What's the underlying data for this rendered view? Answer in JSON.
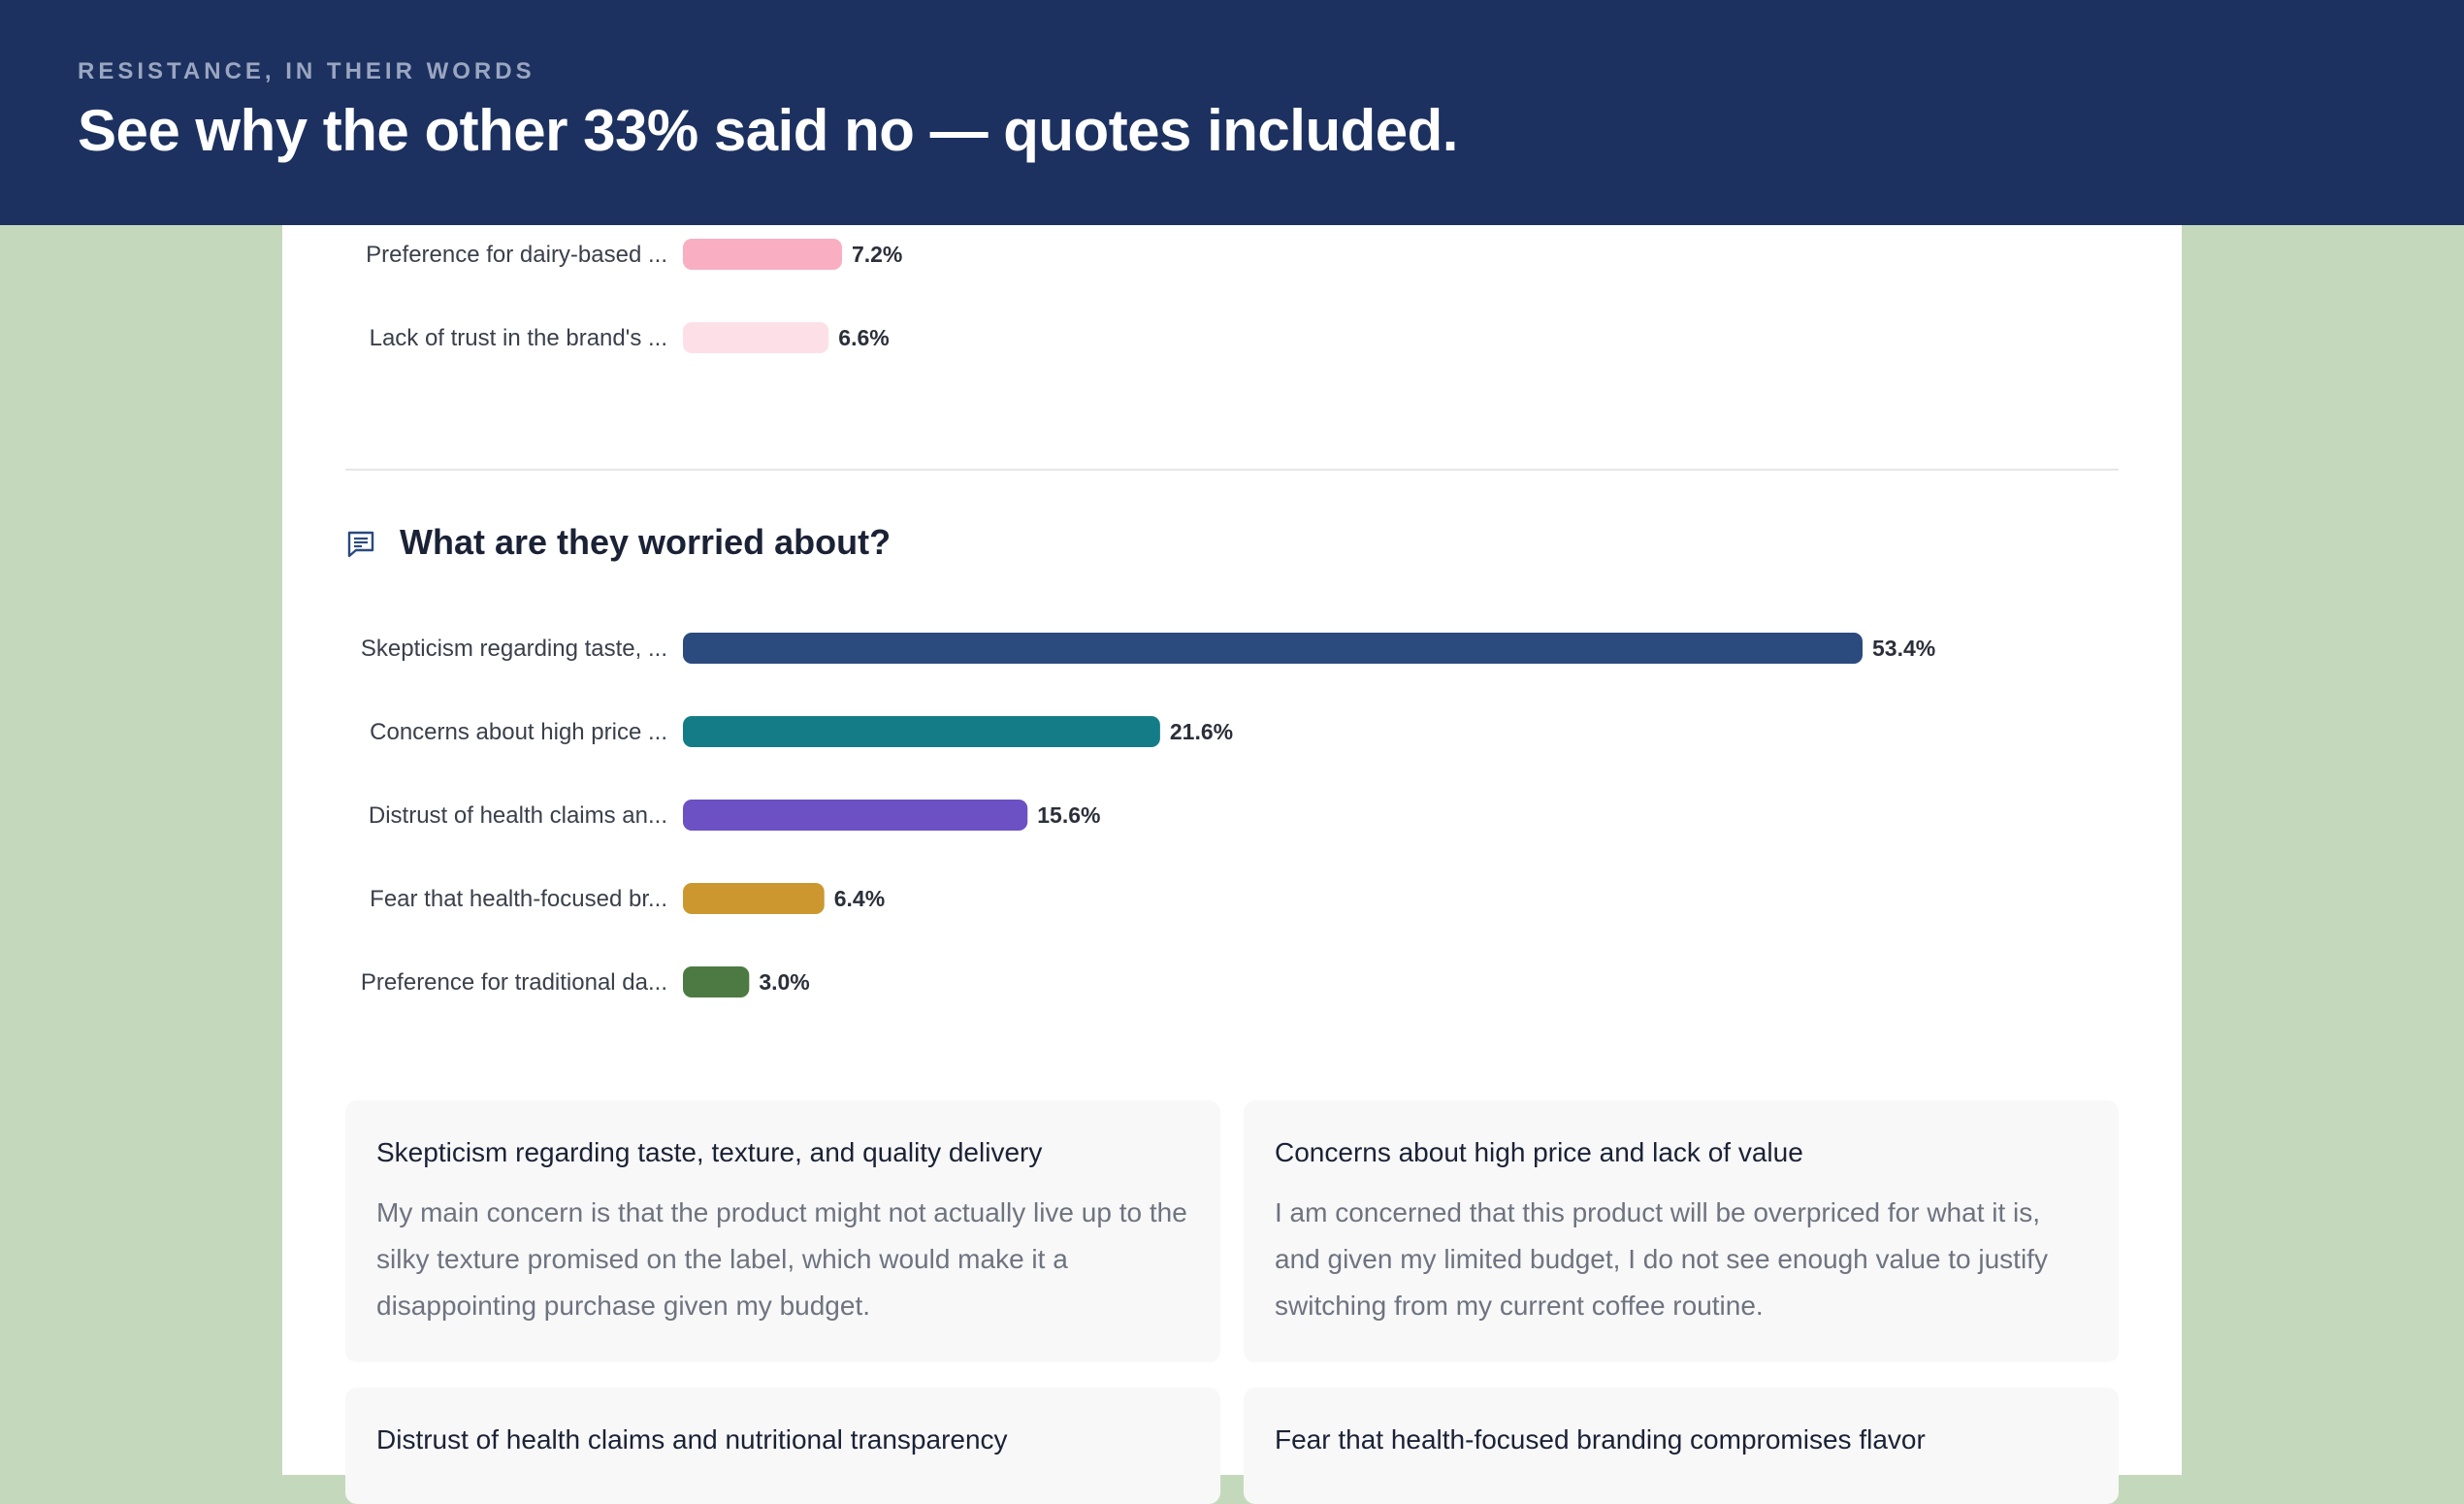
{
  "header": {
    "eyebrow": "RESISTANCE, IN THEIR WORDS",
    "title": "See why the other 33% said no — quotes included."
  },
  "section": {
    "title": "What are they worried about?",
    "icon": "comment-icon"
  },
  "chart_data": [
    {
      "type": "bar",
      "orientation": "horizontal",
      "categories": [
        "Preference for dairy-based ...",
        "Lack of trust in the brand's ..."
      ],
      "values": [
        7.2,
        6.6
      ],
      "value_labels": [
        "7.2%",
        "6.6%"
      ],
      "colors": [
        "#f9aec1",
        "#fde0e7"
      ],
      "xlim": [
        0,
        53.4
      ],
      "grid": false
    },
    {
      "type": "bar",
      "orientation": "horizontal",
      "title": "What are they worried about?",
      "categories": [
        "Skepticism regarding taste, ...",
        "Concerns about high price ...",
        "Distrust of health claims an...",
        "Fear that health-focused br...",
        "Preference for traditional da..."
      ],
      "values": [
        53.4,
        21.6,
        15.6,
        6.4,
        3.0
      ],
      "value_labels": [
        "53.4%",
        "21.6%",
        "15.6%",
        "6.4%",
        "3.0%"
      ],
      "colors": [
        "#2b4a7e",
        "#137c87",
        "#6b51c4",
        "#cc972e",
        "#4d7a42"
      ],
      "xlim": [
        0,
        53.4
      ],
      "grid": false
    }
  ],
  "cards": [
    {
      "title": "Skepticism regarding taste, texture, and quality delivery",
      "body": "My main concern is that the product might not actually live up to the silky texture promised on the label, which would make it a disappointing purchase given my budget."
    },
    {
      "title": "Concerns about high price and lack of value",
      "body": "I am concerned that this product will be overpriced for what it is, and given my limited budget, I do not see enough value to justify switching from my current coffee routine."
    },
    {
      "title": "Distrust of health claims and nutritional transparency",
      "body": ""
    },
    {
      "title": "Fear that health-focused branding compromises flavor",
      "body": ""
    }
  ]
}
